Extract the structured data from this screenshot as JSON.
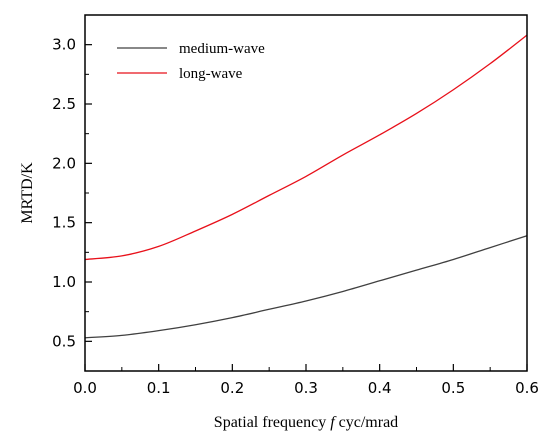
{
  "chart_data": {
    "type": "line",
    "xlabel": {
      "prefix": "Spatial frequency ",
      "italic": "f",
      "suffix": " cyc/mrad"
    },
    "ylabel": "MRTD/K",
    "xlim": [
      0.0,
      0.6
    ],
    "ylim": [
      0.25,
      3.25
    ],
    "xticks": [
      "0.0",
      "0.1",
      "0.2",
      "0.3",
      "0.4",
      "0.5",
      "0.6"
    ],
    "yticks": [
      "0.5",
      "1.0",
      "1.5",
      "2.0",
      "2.5",
      "3.0"
    ],
    "legend_position": "top-left",
    "grid": false,
    "x": [
      0.0,
      0.05,
      0.1,
      0.15,
      0.2,
      0.25,
      0.3,
      0.35,
      0.4,
      0.45,
      0.5,
      0.55,
      0.6
    ],
    "series": [
      {
        "name": "medium-wave",
        "color": "#404040",
        "values": [
          0.53,
          0.55,
          0.59,
          0.64,
          0.7,
          0.77,
          0.84,
          0.92,
          1.01,
          1.1,
          1.19,
          1.29,
          1.39
        ]
      },
      {
        "name": "long-wave",
        "color": "#e8101a",
        "values": [
          1.19,
          1.22,
          1.3,
          1.43,
          1.57,
          1.73,
          1.89,
          2.07,
          2.24,
          2.42,
          2.62,
          2.84,
          3.08
        ]
      }
    ]
  }
}
